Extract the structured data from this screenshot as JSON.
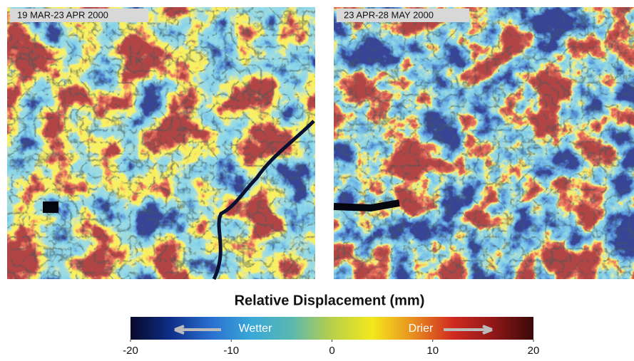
{
  "panels": [
    {
      "label": "19 MAR-23 APR 2000"
    },
    {
      "label": "23 APR-28 MAY 2000"
    }
  ],
  "colorbar": {
    "title": "Relative Displacement (mm)",
    "left_label": "Wetter",
    "right_label": "Drier",
    "lim": [
      -20,
      20
    ],
    "ticks": [
      -20,
      -10,
      0,
      10,
      20
    ],
    "colors": [
      "#08082a",
      "#0e2f88",
      "#2a6fd0",
      "#3aa8d8",
      "#5ab8b0",
      "#b8d048",
      "#f4e81c",
      "#e89020",
      "#d02a20",
      "#901818",
      "#3a0808"
    ]
  }
}
